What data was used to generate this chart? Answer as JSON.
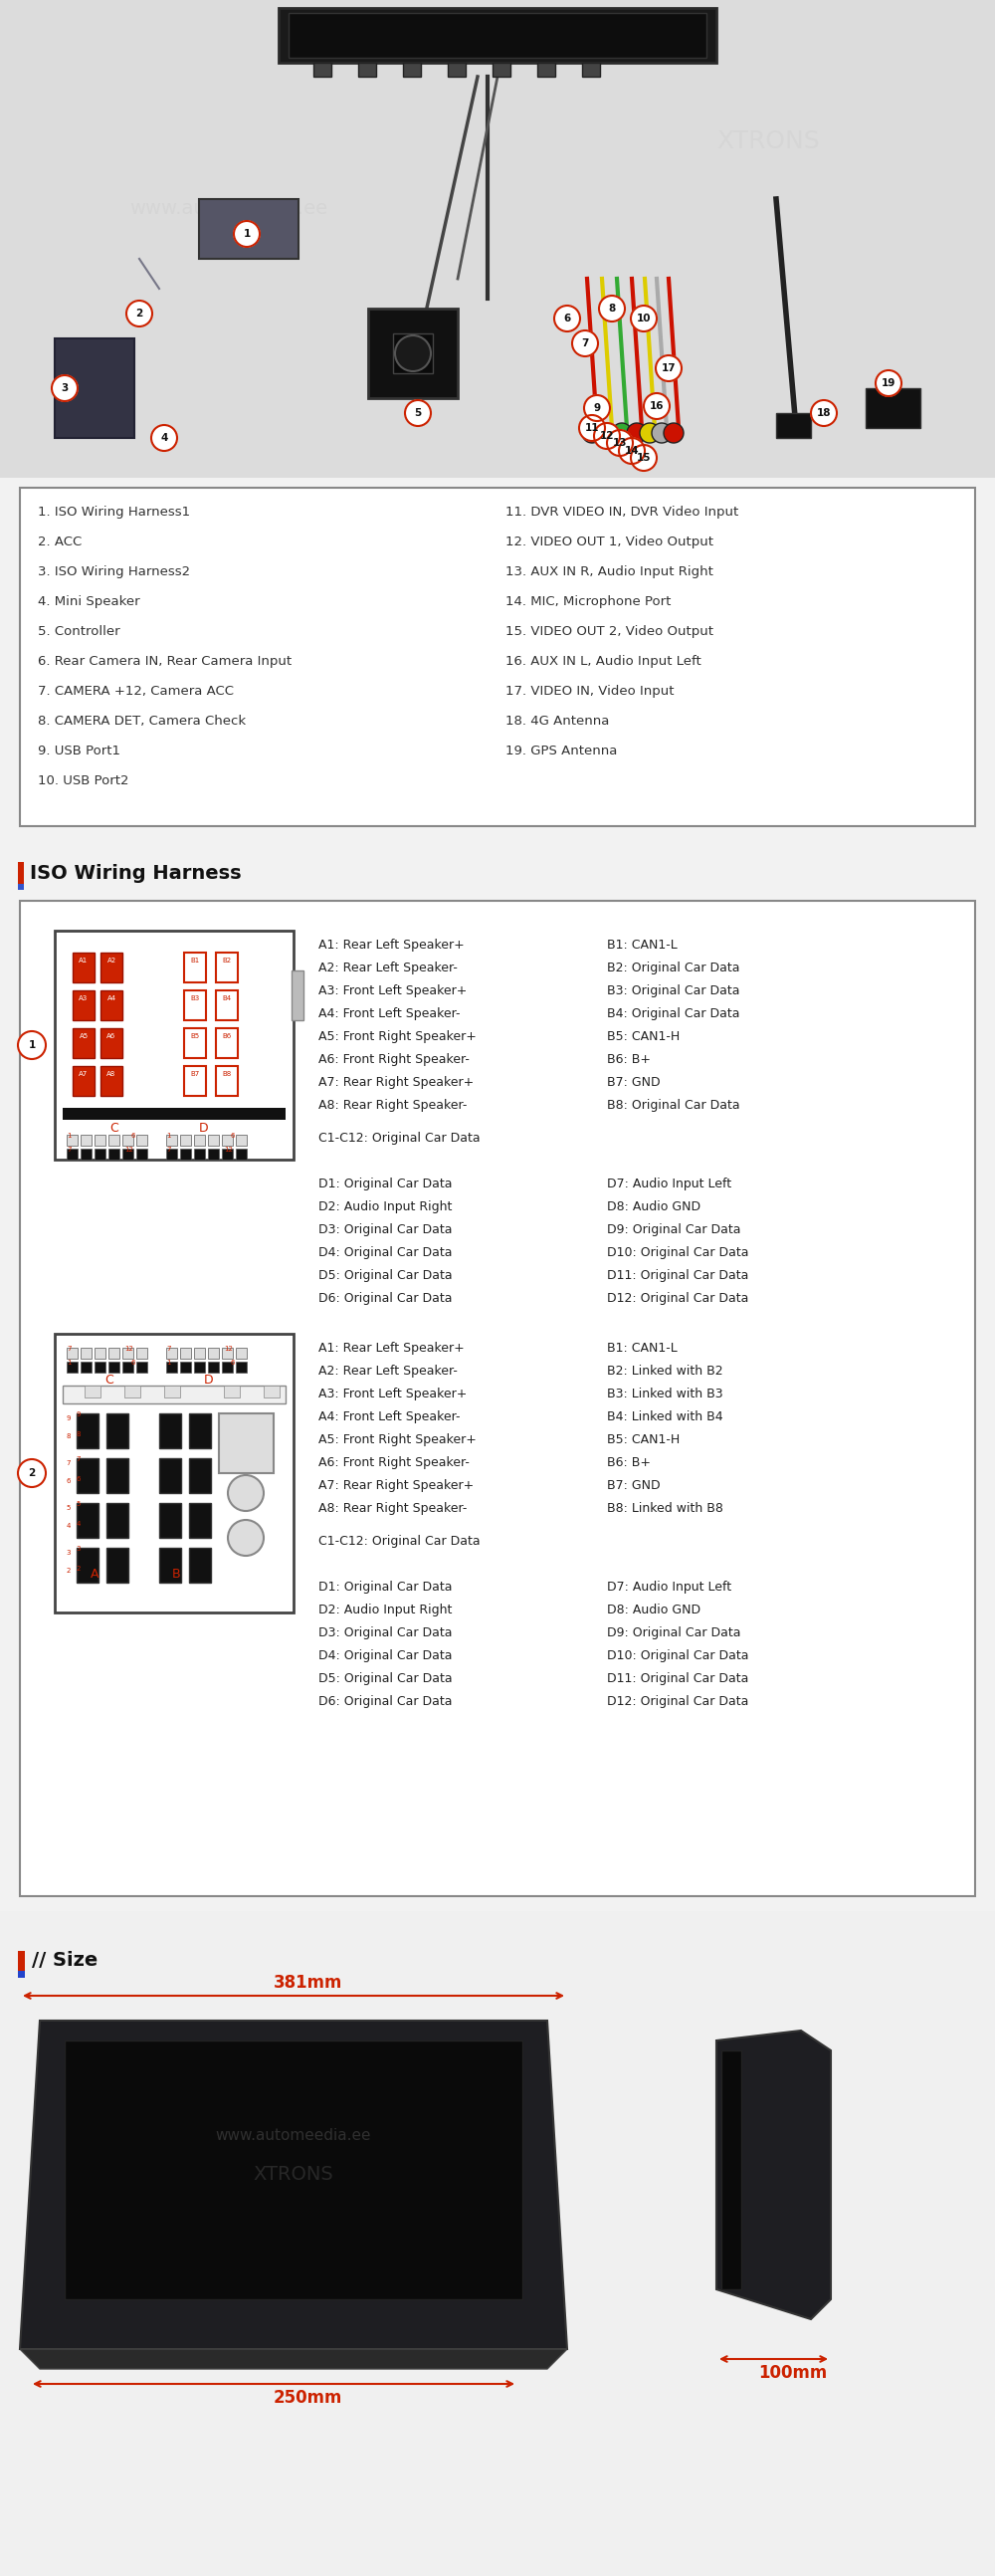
{
  "bg_color": "#f2f2f2",
  "white": "#ffffff",
  "dark_gray": "#333333",
  "red": "#cc0000",
  "light_gray": "#e8e8e8",
  "border_color": "#888888",
  "items_left": [
    "1. ISO Wiring Harness1",
    "2. ACC",
    "3. ISO Wiring Harness2",
    "4. Mini Speaker",
    "5. Controller",
    "6. Rear Camera IN, Rear Camera Input",
    "7. CAMERA +12, Camera ACC",
    "8. CAMERA DET, Camera Check",
    "9. USB Port1",
    "10. USB Port2"
  ],
  "items_right": [
    "11. DVR VIDEO IN, DVR Video Input",
    "12. VIDEO OUT 1, Video Output",
    "13. AUX IN R, Audio Input Right",
    "14. MIC, Microphone Port",
    "15. VIDEO OUT 2, Video Output",
    "16. AUX IN L, Audio Input Left",
    "17. VIDEO IN, Video Input",
    "18. 4G Antenna",
    "19. GPS Antenna"
  ],
  "iso_title": "ISO Wiring Harness",
  "section1_A": [
    "A1: Rear Left Speaker+",
    "A2: Rear Left Speaker-",
    "A3: Front Left Speaker+",
    "A4: Front Left Speaker-",
    "A5: Front Right Speaker+",
    "A6: Front Right Speaker-",
    "A7: Rear Right Speaker+",
    "A8: Rear Right Speaker-"
  ],
  "section1_B": [
    "B1: CAN1-L",
    "B2: Original Car Data",
    "B3: Original Car Data",
    "B4: Original Car Data",
    "B5: CAN1-H",
    "B6: B+",
    "B7: GND",
    "B8: Original Car Data"
  ],
  "section1_CD": "C1-C12: Original Car Data",
  "section1_D": [
    "D1: Original Car Data",
    "D2: Audio Input Right",
    "D3: Original Car Data",
    "D4: Original Car Data",
    "D5: Original Car Data",
    "D6: Original Car Data"
  ],
  "section1_D2": [
    "D7: Audio Input Left",
    "D8: Audio GND",
    "D9: Original Car Data",
    "D10: Original Car Data",
    "D11: Original Car Data",
    "D12: Original Car Data"
  ],
  "section2_A": [
    "A1: Rear Left Speaker+",
    "A2: Rear Left Speaker-",
    "A3: Front Left Speaker+",
    "A4: Front Left Speaker-",
    "A5: Front Right Speaker+",
    "A6: Front Right Speaker-",
    "A7: Rear Right Speaker+",
    "A8: Rear Right Speaker-"
  ],
  "section2_B": [
    "B1: CAN1-L",
    "B2: Linked with B2",
    "B3: Linked with B3",
    "B4: Linked with B4",
    "B5: CAN1-H",
    "B6: B+",
    "B7: GND",
    "B8: Linked with B8"
  ],
  "section2_CD": "C1-C12: Original Car Data",
  "section2_D": [
    "D1: Original Car Data",
    "D2: Audio Input Right",
    "D3: Original Car Data",
    "D4: Original Car Data",
    "D5: Original Car Data",
    "D6: Original Car Data"
  ],
  "section2_D2": [
    "D7: Audio Input Left",
    "D8: Audio GND",
    "D9: Original Car Data",
    "D10: Original Car Data",
    "D11: Original Car Data",
    "D12: Original Car Data"
  ],
  "size_title": "Size",
  "dim_width": "381mm",
  "dim_height": "250mm",
  "dim_depth": "100mm"
}
